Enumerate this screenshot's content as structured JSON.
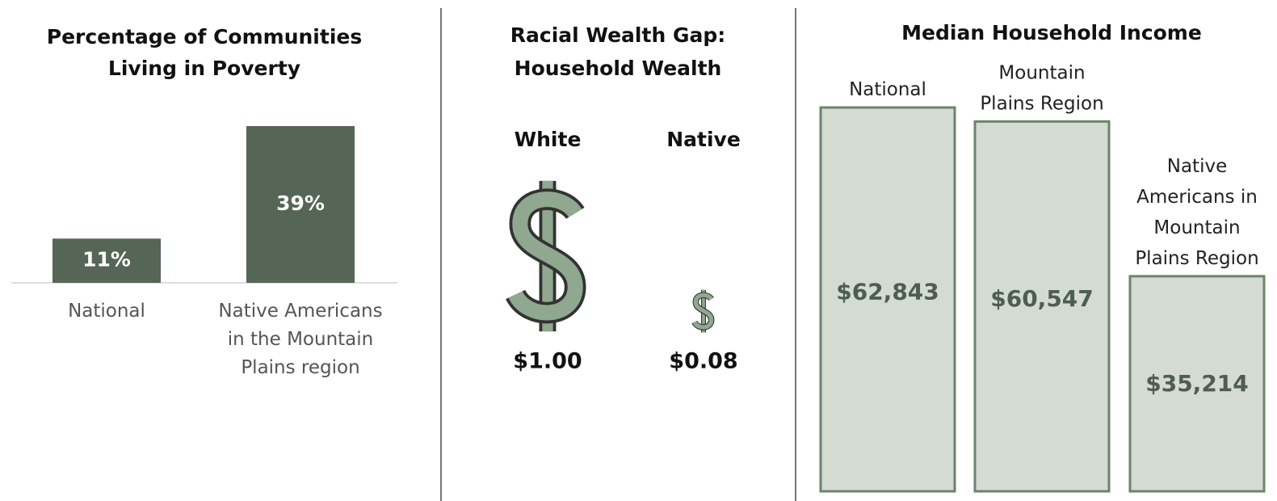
{
  "chart_data": [
    {
      "type": "bar",
      "title": "Percentage of Communities Living in Poverty",
      "categories": [
        "National",
        "Native Americans in the Mountain Plains region"
      ],
      "values": [
        11,
        39
      ],
      "value_labels": [
        "11%",
        "39%"
      ],
      "color": "#566656"
    },
    {
      "type": "pictograph",
      "title": "Racial Wealth Gap: Household Wealth",
      "categories": [
        "White",
        "Native"
      ],
      "values": [
        1.0,
        0.08
      ],
      "value_labels": [
        "$1.00",
        "$0.08"
      ],
      "color": "#8fa88f"
    },
    {
      "type": "outlined-bar",
      "title": "Median Household Income",
      "categories": [
        "National",
        "Mountain Plains Region",
        "Native Americans in Mountain Plains Region"
      ],
      "values": [
        62843,
        60547,
        35214
      ],
      "value_labels": [
        "$62,843",
        "$60,547",
        "$35,214"
      ],
      "color": "#d3dbd3"
    }
  ]
}
